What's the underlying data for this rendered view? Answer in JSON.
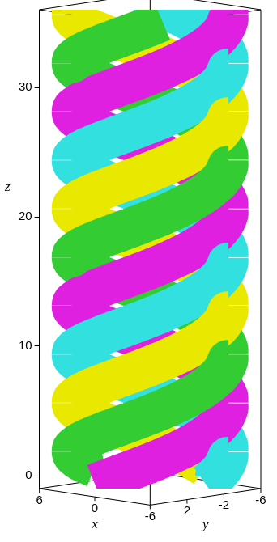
{
  "chart_data": {
    "type": "surface3d",
    "axis_labels": {
      "x": "x",
      "y": "y",
      "z": "z"
    },
    "xlim": [
      -6,
      6
    ],
    "ylim": [
      -6,
      6
    ],
    "zlim": [
      -1,
      36
    ],
    "xticks": [
      6,
      0,
      -6
    ],
    "yticks": [
      2,
      -2,
      -6
    ],
    "zticks": [
      0,
      10,
      20,
      30
    ],
    "grid": false,
    "surface": {
      "radius": 6,
      "pitch": 15,
      "z": [
        0,
        36
      ],
      "strands": [
        {
          "color": "#33cc33",
          "phase": 0
        },
        {
          "color": "#e8e800",
          "phase": -90
        },
        {
          "color": "#33e0e0",
          "phase": -180
        },
        {
          "color": "#e020e0",
          "phase": -270
        }
      ]
    }
  }
}
